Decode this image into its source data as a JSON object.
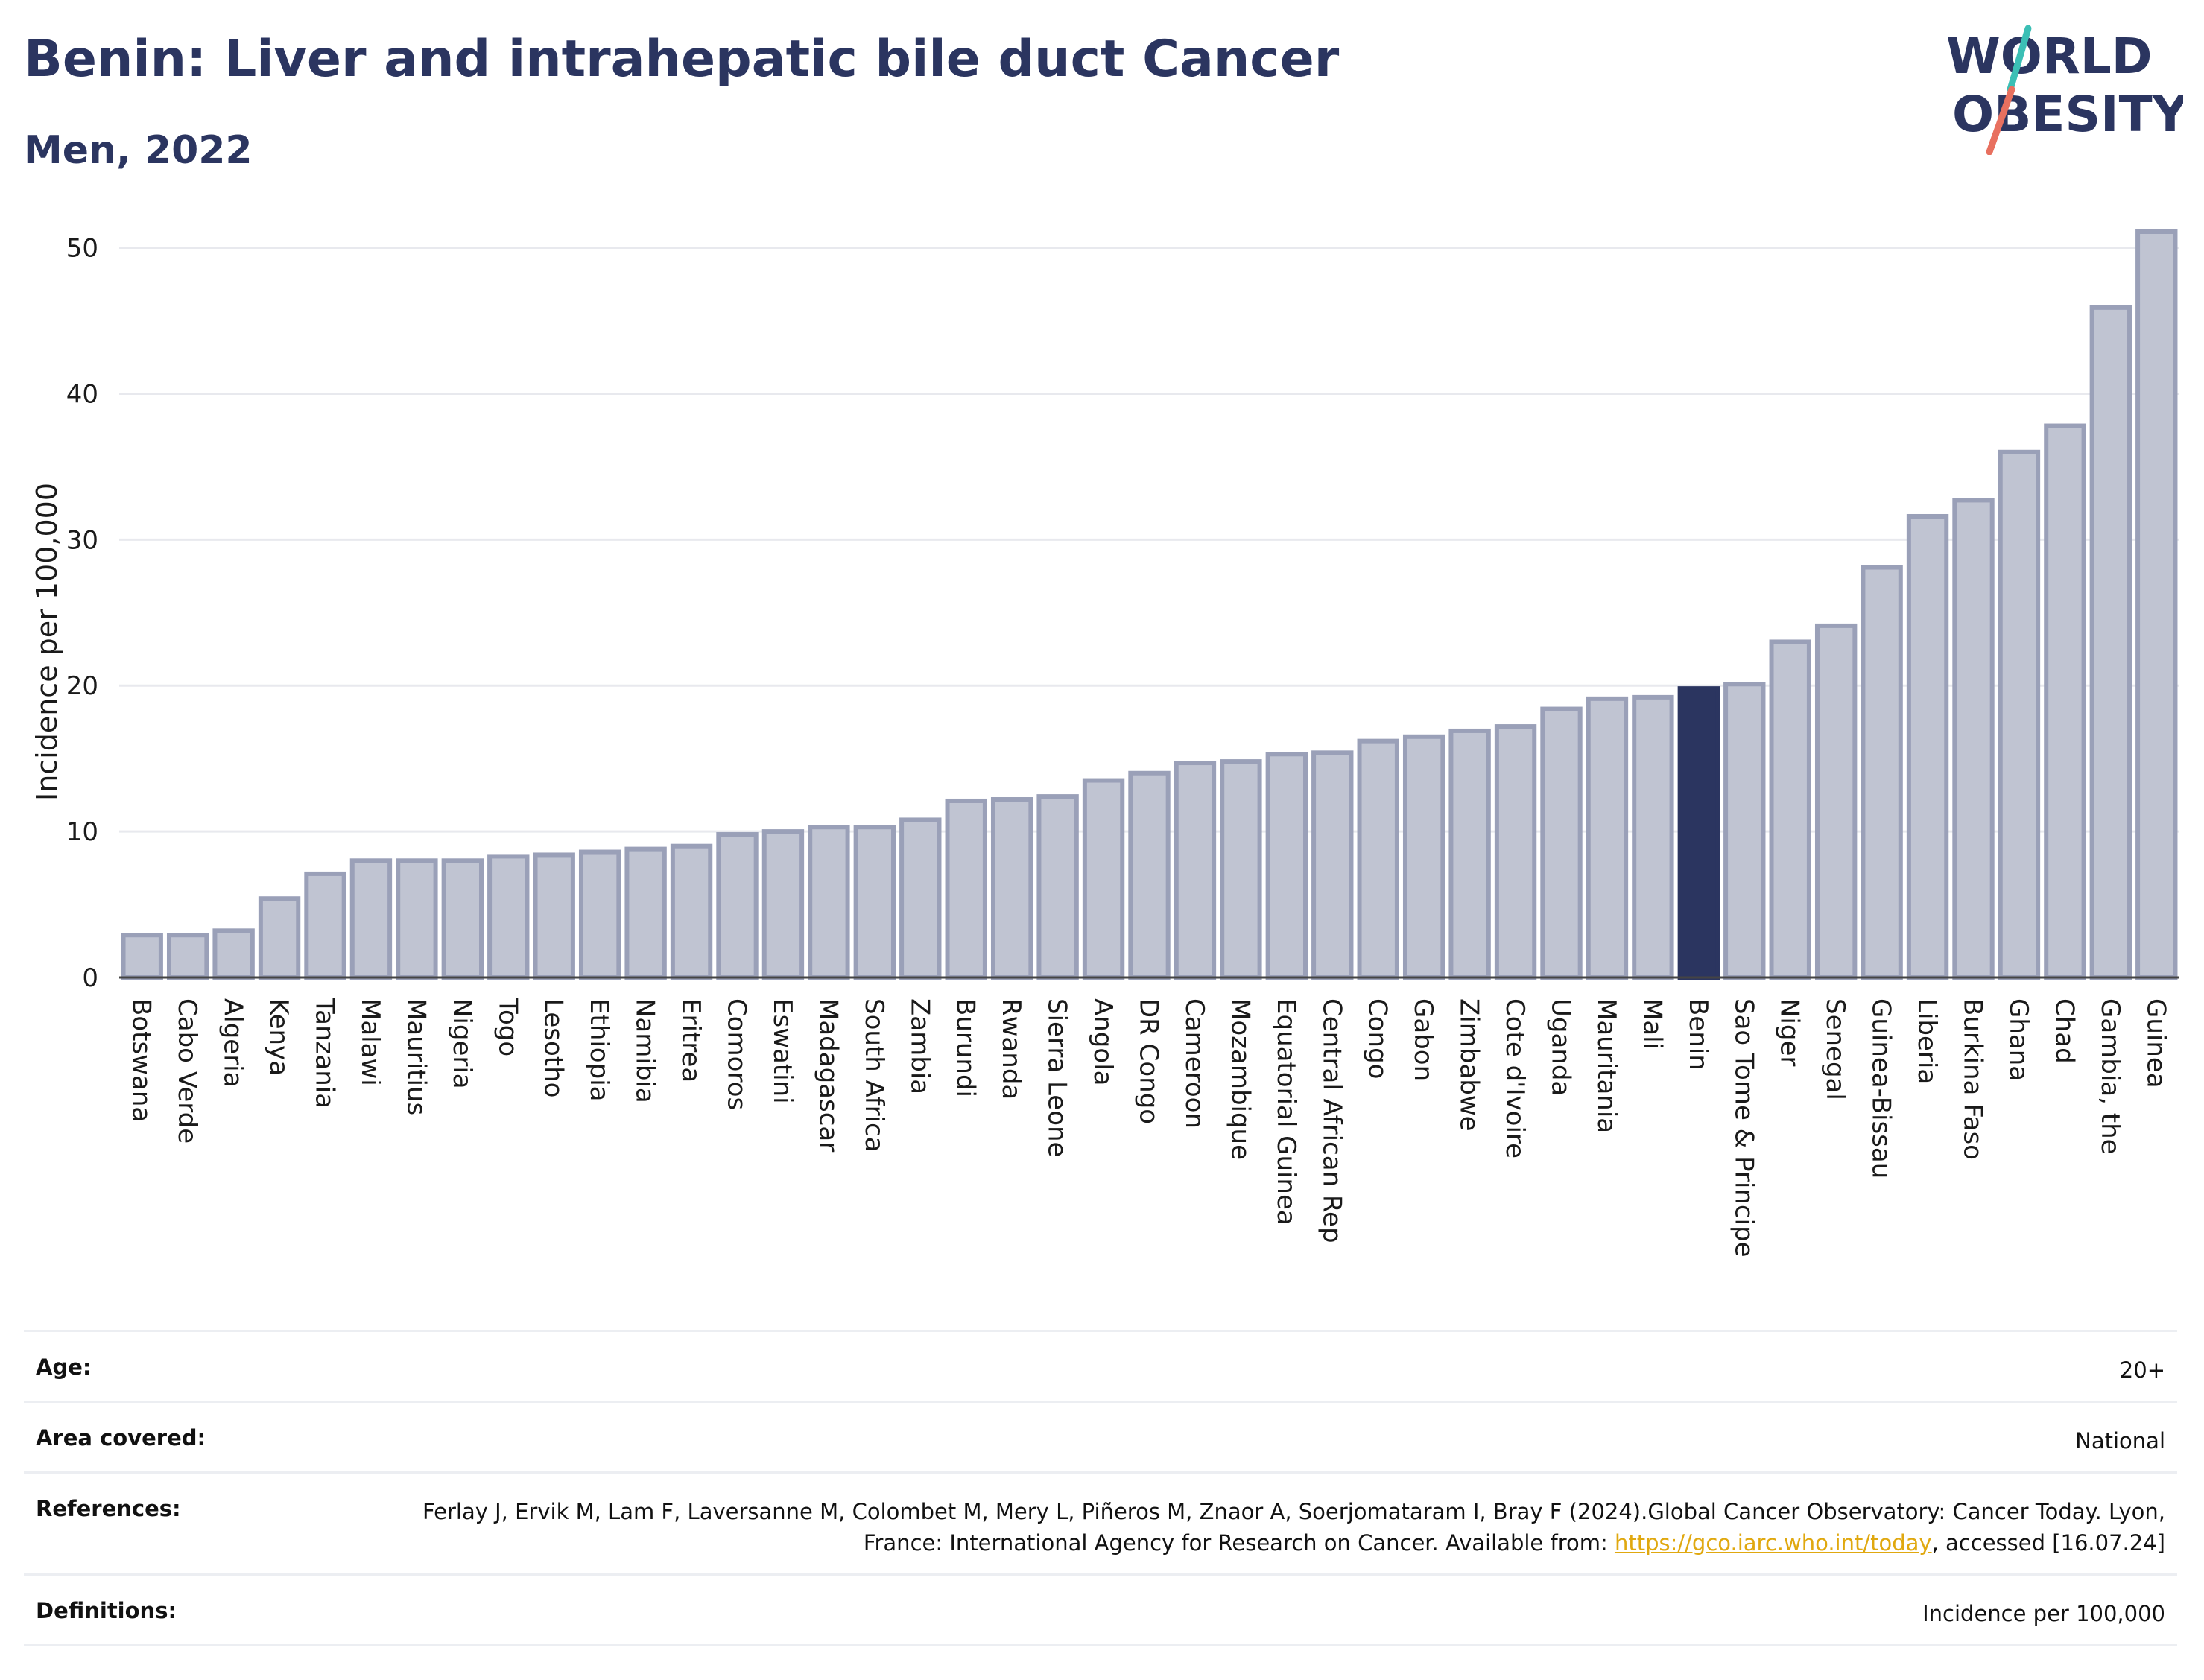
{
  "header": {
    "title": "Benin: Liver and intrahepatic bile duct Cancer",
    "subtitle": "Men, 2022"
  },
  "logo": {
    "line1": "WORLD",
    "line2": "OBESITY"
  },
  "colors": {
    "bar_default": "#c0c4d2",
    "bar_border": "#9aa0b8",
    "bar_highlight": "#2b3560",
    "grid": "#e8e9ee",
    "logo_teal": "#3bbfb5",
    "logo_coral": "#e8705f"
  },
  "chart_data": {
    "type": "bar",
    "ylabel": "Incidence per 100,000",
    "ylim": [
      0,
      53
    ],
    "yticks": [
      0,
      10,
      20,
      30,
      40,
      50
    ],
    "grid": true,
    "highlight": "Benin",
    "categories": [
      "Botswana",
      "Cabo Verde",
      "Algeria",
      "Kenya",
      "Tanzania",
      "Malawi",
      "Mauritius",
      "Nigeria",
      "Togo",
      "Lesotho",
      "Ethiopia",
      "Namibia",
      "Eritrea",
      "Comoros",
      "Eswatini",
      "Madagascar",
      "South Africa",
      "Zambia",
      "Burundi",
      "Rwanda",
      "Sierra Leone",
      "Angola",
      "DR Congo",
      "Cameroon",
      "Mozambique",
      "Equatorial Guinea",
      "Central African Rep",
      "Congo",
      "Gabon",
      "Zimbabwe",
      "Cote d'Ivoire",
      "Uganda",
      "Mauritania",
      "Mali",
      "Benin",
      "Sao Tome & Principe",
      "Niger",
      "Senegal",
      "Guinea-Bissau",
      "Liberia",
      "Burkina Faso",
      "Ghana",
      "Chad",
      "Gambia, the",
      "Guinea"
    ],
    "values": [
      2.9,
      2.9,
      3.2,
      5.4,
      7.1,
      8.0,
      8.0,
      8.0,
      8.3,
      8.4,
      8.6,
      8.8,
      9.0,
      9.8,
      10.0,
      10.3,
      10.3,
      10.8,
      12.1,
      12.2,
      12.4,
      13.5,
      14.0,
      14.7,
      14.8,
      15.3,
      15.4,
      16.2,
      16.5,
      16.9,
      17.2,
      18.4,
      19.1,
      19.2,
      19.8,
      20.1,
      23.0,
      24.1,
      28.1,
      31.6,
      32.7,
      36.0,
      37.8,
      45.9,
      51.1
    ]
  },
  "info": [
    {
      "label": "Age:",
      "value": "20+"
    },
    {
      "label": "Area covered:",
      "value": "National"
    },
    {
      "label": "References:",
      "value_part1": "Ferlay J, Ervik M, Lam F, Laversanne M, Colombet M, Mery L, Piñeros M, Znaor A, Soerjomataram I, Bray F (2024).Global Cancer Observatory: Cancer Today. Lyon, France: International Agency for Research on Cancer. Available from: ",
      "link": "https://gco.iarc.who.int/today",
      "value_part2": ", accessed [16.07.24]"
    },
    {
      "label": "Definitions:",
      "value": "Incidence per 100,000"
    }
  ]
}
